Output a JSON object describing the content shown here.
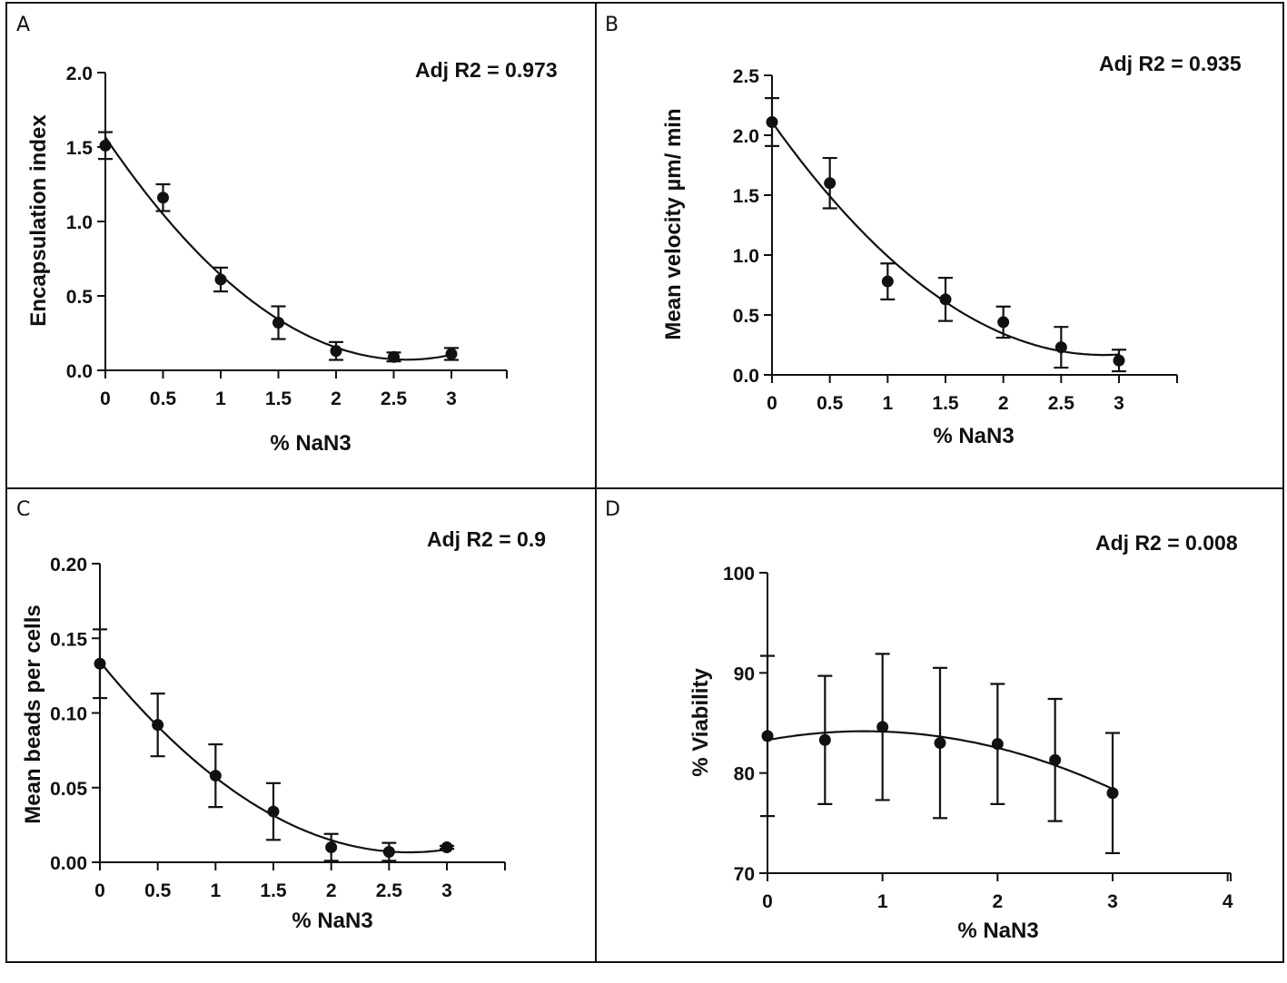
{
  "chart_data": [
    {
      "panel": "A",
      "type": "scatter",
      "annotation": "Adj R2 = 0.973",
      "xlabel": "% NaN3",
      "ylabel": "Encapsulation index",
      "xlim": [
        0,
        3.5
      ],
      "ylim": [
        0,
        2.0
      ],
      "xticks": [
        0,
        0.5,
        1,
        1.5,
        2,
        2.5,
        3
      ],
      "xtick_labels": [
        "0",
        "0.5",
        "1",
        "1.5",
        "2",
        "2.5",
        "3"
      ],
      "yticks": [
        0,
        0.5,
        1.0,
        1.5,
        2.0
      ],
      "ytick_labels": [
        "0.0",
        "0.5",
        "1.0",
        "1.5",
        "2.0"
      ],
      "x": [
        0,
        0.5,
        1,
        1.5,
        2,
        2.5,
        3
      ],
      "y": [
        1.51,
        1.16,
        0.61,
        0.32,
        0.13,
        0.09,
        0.11
      ],
      "error": [
        0.09,
        0.09,
        0.08,
        0.11,
        0.06,
        0.03,
        0.04
      ],
      "fit": "quadratic"
    },
    {
      "panel": "B",
      "type": "scatter",
      "annotation": "Adj R2 = 0.935",
      "xlabel": "% NaN3",
      "ylabel": "Mean velocity µm/ min",
      "xlim": [
        0,
        3.5
      ],
      "ylim": [
        0,
        2.5
      ],
      "xticks": [
        0,
        0.5,
        1,
        1.5,
        2,
        2.5,
        3
      ],
      "xtick_labels": [
        "0",
        "0.5",
        "1",
        "1.5",
        "2",
        "2.5",
        "3"
      ],
      "yticks": [
        0,
        0.5,
        1.0,
        1.5,
        2.0,
        2.5
      ],
      "ytick_labels": [
        "0.0",
        "0.5",
        "1.0",
        "1.5",
        "2.0",
        "2.5"
      ],
      "x": [
        0,
        0.5,
        1,
        1.5,
        2,
        2.5,
        3
      ],
      "y": [
        2.11,
        1.6,
        0.78,
        0.63,
        0.44,
        0.23,
        0.12
      ],
      "error": [
        0.2,
        0.21,
        0.15,
        0.18,
        0.13,
        0.17,
        0.09
      ],
      "fit": "quadratic"
    },
    {
      "panel": "C",
      "type": "scatter",
      "annotation": "Adj R2 = 0.9",
      "xlabel": "% NaN3",
      "ylabel": "Mean beads per cells",
      "xlim": [
        0,
        3.5
      ],
      "ylim": [
        0,
        0.2
      ],
      "xticks": [
        0,
        0.5,
        1,
        1.5,
        2,
        2.5,
        3
      ],
      "xtick_labels": [
        "0",
        "0.5",
        "1",
        "1.5",
        "2",
        "2.5",
        "3"
      ],
      "yticks": [
        0,
        0.05,
        0.1,
        0.15,
        0.2
      ],
      "ytick_labels": [
        "0.00",
        "0.05",
        "0.10",
        "0.15",
        "0.20"
      ],
      "x": [
        0,
        0.5,
        1,
        1.5,
        2,
        2.5,
        3
      ],
      "y": [
        0.133,
        0.092,
        0.058,
        0.034,
        0.01,
        0.007,
        0.01
      ],
      "error": [
        0.023,
        0.021,
        0.021,
        0.019,
        0.009,
        0.006,
        0.001
      ],
      "fit": "quadratic"
    },
    {
      "panel": "D",
      "type": "scatter",
      "annotation": "Adj R2 = 0.008",
      "xlabel": "% NaN3",
      "ylabel": "% Viability",
      "xlim": [
        0,
        4
      ],
      "ylim": [
        70,
        100
      ],
      "xticks": [
        0,
        1,
        2,
        3,
        4
      ],
      "xtick_labels": [
        "0",
        "1",
        "2",
        "3",
        "4"
      ],
      "yticks": [
        70,
        80,
        90,
        100
      ],
      "ytick_labels": [
        "70",
        "80",
        "90",
        "100"
      ],
      "x": [
        0,
        0.5,
        1,
        1.5,
        2,
        2.5,
        3
      ],
      "y": [
        83.7,
        83.3,
        84.6,
        83.0,
        82.9,
        81.3,
        78.0
      ],
      "error": [
        8.0,
        6.4,
        7.3,
        7.5,
        6.0,
        6.1,
        6.0
      ],
      "fit": "quadratic"
    }
  ]
}
